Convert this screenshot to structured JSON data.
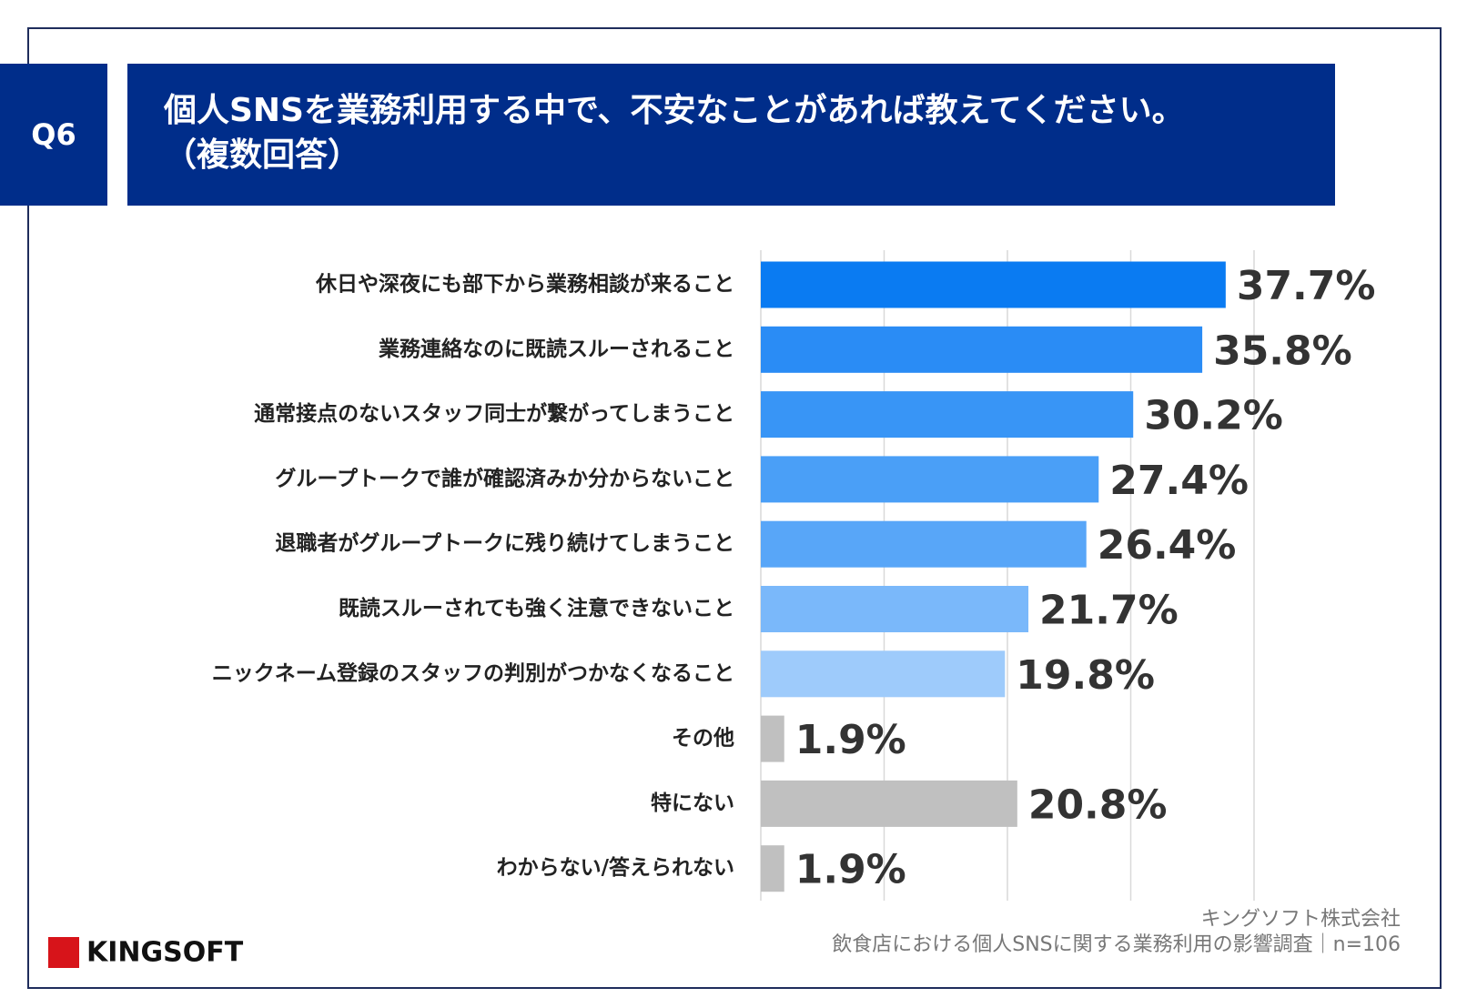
{
  "badge": "Q6",
  "chart_data": {
    "type": "hbar",
    "title": "個人SNSを業務利用する中で、不安なことがあれば教えてください。",
    "subtitle": "（複数回答）",
    "categories": [
      "休日や深夜にも部下から業務相談が来ること",
      "業務連絡なのに既読スルーされること",
      "通常接点のないスタッフ同士が繋がってしまうこと",
      "グループトークで誰が確認済みか分からないこと",
      "退職者がグループトークに残り続けてしまうこと",
      "既読スルーされても強く注意できないこと",
      "ニックネーム登録のスタッフの判別がつかなくなること",
      "その他",
      "特にない",
      "わからない/答えられない"
    ],
    "values": [
      37.7,
      35.8,
      30.2,
      27.4,
      26.4,
      21.7,
      19.8,
      1.9,
      20.8,
      1.9
    ],
    "value_labels": [
      "37.7%",
      "35.8%",
      "30.2%",
      "27.4%",
      "26.4%",
      "21.7%",
      "19.8%",
      "1.9%",
      "20.8%",
      "1.9%"
    ],
    "colors": [
      "#0a7bf2",
      "#2a8cf5",
      "#3895f6",
      "#4a9ff7",
      "#58a6f8",
      "#7ab8fa",
      "#9ecbfb",
      "#c0c0c0",
      "#c0c0c0",
      "#c0c0c0"
    ],
    "xlim": [
      0,
      40
    ],
    "xticks": [
      0,
      10,
      20,
      30,
      40
    ],
    "grid": true
  },
  "source": [
    "キングソフト株式会社",
    "飲食店における個人SNSに関する業務利用の影響調査｜n=106"
  ],
  "logo": "KINGSOFT"
}
